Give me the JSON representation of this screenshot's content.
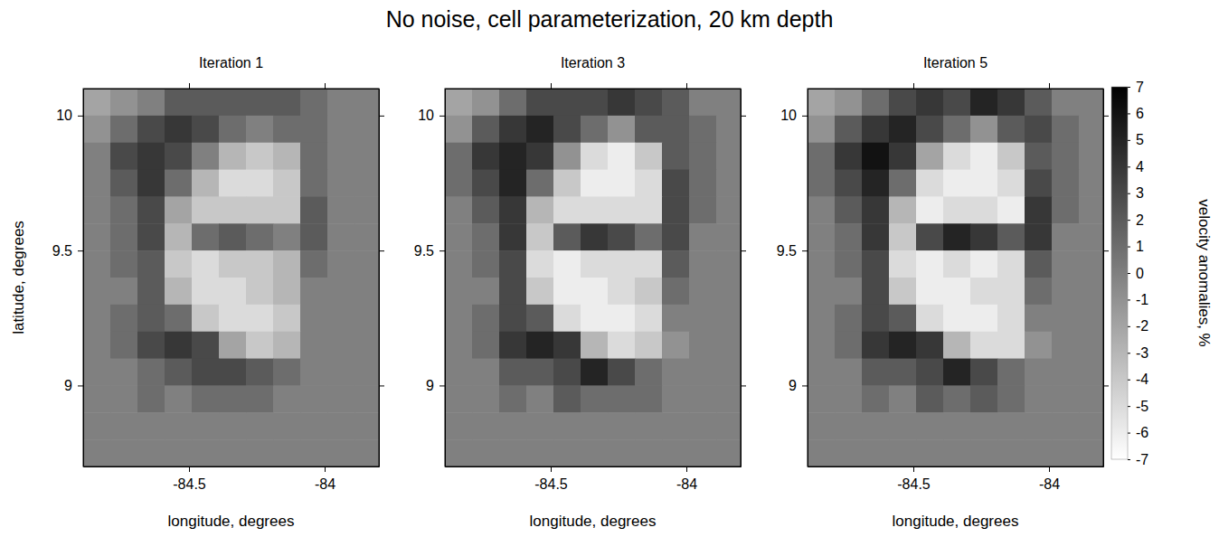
{
  "chart_data": {
    "type": "heatmap",
    "title": "No noise, cell parameterization, 20 km depth",
    "x_label": "longitude, degrees",
    "y_label": "latitude, degrees",
    "xlim": [
      -84.89,
      -83.8
    ],
    "ylim": [
      8.7,
      10.1
    ],
    "xticks": [
      -84.5,
      -84
    ],
    "yticks": [
      9,
      9.5,
      10
    ],
    "x": [
      -84.84,
      -84.74,
      -84.64,
      -84.54,
      -84.44,
      -84.34,
      -84.24,
      -84.14,
      -84.04,
      -83.94,
      -83.84
    ],
    "y": [
      10.05,
      9.95,
      9.85,
      9.75,
      9.65,
      9.55,
      9.45,
      9.35,
      9.25,
      9.15,
      9.05,
      8.95,
      8.85,
      8.75
    ],
    "colorbar": {
      "label": "velocity anomalies, %",
      "range": [
        -7,
        7
      ],
      "ticks": [
        7,
        6,
        5,
        4,
        3,
        2,
        1,
        0,
        -1,
        -2,
        -3,
        -4,
        -5,
        -6,
        -7
      ]
    },
    "panels": [
      {
        "title": "Iteration 1",
        "values": [
          [
            -2,
            -1,
            0,
            2,
            2,
            2,
            2,
            2,
            1,
            0,
            0
          ],
          [
            -1,
            1,
            3,
            4,
            3,
            1,
            0,
            1,
            1,
            0,
            0
          ],
          [
            0,
            3,
            4,
            3,
            0,
            -3,
            -4,
            -3,
            1,
            0,
            0
          ],
          [
            0,
            2,
            4,
            1,
            -3,
            -5,
            -5,
            -4,
            1,
            0,
            0
          ],
          [
            0,
            1,
            3,
            -2,
            -4,
            -4,
            -4,
            -4,
            2,
            0,
            0
          ],
          [
            0,
            1,
            3,
            -3,
            1,
            2,
            1,
            0,
            2,
            0,
            0
          ],
          [
            0,
            1,
            2,
            -4,
            -5,
            -4,
            -4,
            -3,
            1,
            0,
            0
          ],
          [
            0,
            0,
            2,
            -3,
            -5,
            -5,
            -4,
            -3,
            0,
            0,
            0
          ],
          [
            0,
            1,
            2,
            1,
            -4,
            -5,
            -5,
            -4,
            0,
            0,
            0
          ],
          [
            0,
            1,
            3,
            4,
            3,
            -2,
            -4,
            -3,
            0,
            0,
            0
          ],
          [
            0,
            0,
            1,
            2,
            3,
            3,
            2,
            1,
            0,
            0,
            0
          ],
          [
            0,
            0,
            1,
            0,
            1,
            1,
            1,
            0,
            0,
            0,
            0
          ],
          [
            0,
            0,
            0,
            0,
            0,
            0,
            0,
            0,
            0,
            0,
            0
          ],
          [
            0,
            0,
            0,
            0,
            0,
            0,
            0,
            0,
            0,
            0,
            0
          ]
        ]
      },
      {
        "title": "Iteration 3",
        "values": [
          [
            -2,
            -1,
            1,
            3,
            3,
            3,
            4,
            3,
            2,
            0,
            0
          ],
          [
            -1,
            2,
            4,
            5,
            3,
            1,
            -1,
            2,
            2,
            1,
            0
          ],
          [
            1,
            4,
            5,
            4,
            -1,
            -5,
            -6,
            -4,
            2,
            1,
            0
          ],
          [
            1,
            3,
            5,
            1,
            -4,
            -6,
            -6,
            -5,
            3,
            1,
            0
          ],
          [
            0,
            2,
            4,
            -3,
            -5,
            -5,
            -5,
            -5,
            3,
            1,
            0
          ],
          [
            0,
            1,
            4,
            -4,
            2,
            4,
            3,
            1,
            3,
            0,
            0
          ],
          [
            0,
            1,
            3,
            -5,
            -6,
            -5,
            -5,
            -5,
            2,
            0,
            0
          ],
          [
            0,
            0,
            3,
            -4,
            -6,
            -6,
            -5,
            -4,
            1,
            0,
            0
          ],
          [
            0,
            1,
            3,
            2,
            -5,
            -6,
            -6,
            -5,
            0,
            0,
            0
          ],
          [
            0,
            1,
            4,
            5,
            4,
            -3,
            -5,
            -4,
            -1,
            0,
            0
          ],
          [
            0,
            0,
            2,
            2,
            3,
            5,
            3,
            1,
            0,
            0,
            0
          ],
          [
            0,
            0,
            1,
            0,
            2,
            1,
            1,
            1,
            0,
            0,
            0
          ],
          [
            0,
            0,
            0,
            0,
            0,
            0,
            0,
            0,
            0,
            0,
            0
          ],
          [
            0,
            0,
            0,
            0,
            0,
            0,
            0,
            0,
            0,
            0,
            0
          ]
        ]
      },
      {
        "title": "Iteration 5",
        "values": [
          [
            -2,
            -1,
            1,
            3,
            4,
            3,
            5,
            4,
            2,
            0,
            0
          ],
          [
            -1,
            2,
            4,
            5,
            3,
            1,
            -1,
            2,
            3,
            1,
            0
          ],
          [
            1,
            4,
            6,
            4,
            -2,
            -5,
            -6,
            -4,
            2,
            1,
            0
          ],
          [
            1,
            3,
            5,
            1,
            -5,
            -6,
            -6,
            -5,
            3,
            1,
            0
          ],
          [
            0,
            2,
            4,
            -3,
            -6,
            -5,
            -5,
            -6,
            4,
            1,
            0
          ],
          [
            0,
            1,
            4,
            -4,
            3,
            5,
            4,
            2,
            4,
            0,
            0
          ],
          [
            0,
            1,
            3,
            -5,
            -6,
            -5,
            -6,
            -5,
            2,
            0,
            0
          ],
          [
            0,
            0,
            3,
            -4,
            -6,
            -6,
            -5,
            -5,
            1,
            0,
            0
          ],
          [
            0,
            1,
            3,
            2,
            -5,
            -6,
            -6,
            -5,
            0,
            0,
            0
          ],
          [
            0,
            1,
            4,
            5,
            4,
            -3,
            -5,
            -5,
            -1,
            0,
            0
          ],
          [
            0,
            0,
            2,
            2,
            3,
            5,
            3,
            1,
            0,
            0,
            0
          ],
          [
            0,
            0,
            1,
            0,
            2,
            1,
            2,
            1,
            0,
            0,
            0
          ],
          [
            0,
            0,
            0,
            0,
            0,
            0,
            0,
            0,
            0,
            0,
            0
          ],
          [
            0,
            0,
            0,
            0,
            0,
            0,
            0,
            0,
            0,
            0,
            0
          ]
        ]
      }
    ]
  }
}
